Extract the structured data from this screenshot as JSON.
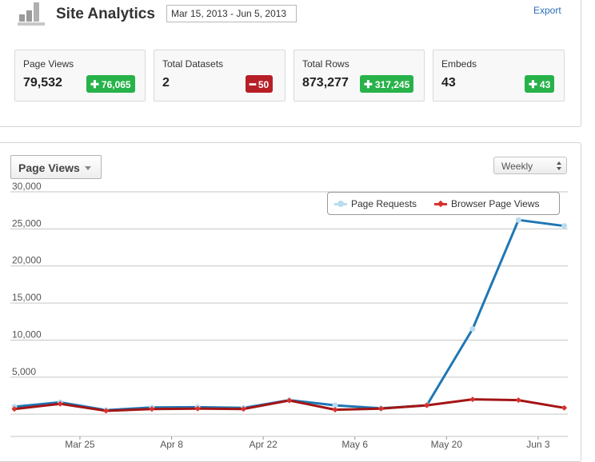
{
  "header": {
    "title": "Site Analytics",
    "date_range": "Mar 15, 2013 - Jun 5, 2013",
    "export_label": "Export"
  },
  "stats": [
    {
      "label": "Page Views",
      "value": "79,532",
      "delta": "76,065",
      "delta_direction": "up"
    },
    {
      "label": "Total Datasets",
      "value": "2",
      "delta": "50",
      "delta_direction": "down"
    },
    {
      "label": "Total Rows",
      "value": "873,277",
      "delta": "317,245",
      "delta_direction": "up"
    },
    {
      "label": "Embeds",
      "value": "43",
      "delta": "43",
      "delta_direction": "up"
    }
  ],
  "icons": {
    "app": "bar-chart-icon",
    "delta_up": "plus-icon",
    "delta_down": "minus-icon",
    "dropdown": "caret-down-icon",
    "select": "up-down-arrows-icon"
  },
  "chart_controls": {
    "metric": "Page Views",
    "interval": "Weekly"
  },
  "colors": {
    "up": "#27b24a",
    "down": "#b71f27",
    "page_requests": "#1f77b4",
    "browser_page_views": "#a31515",
    "page_requests_marker": "#b9dcef",
    "browser_marker": "#d9312d",
    "link": "#2a6ebb"
  },
  "chart_data": {
    "type": "line",
    "x": [
      "Mar 15",
      "Mar 22",
      "Mar 29",
      "Apr 5",
      "Apr 12",
      "Apr 19",
      "Apr 26",
      "May 3",
      "May 10",
      "May 17",
      "May 24",
      "May 31",
      "Jun 5"
    ],
    "x_tick_labels": [
      "Mar 25",
      "Apr 8",
      "Apr 22",
      "May 6",
      "May 20",
      "Jun 3"
    ],
    "ylim": [
      -3000,
      30000
    ],
    "y_ticks": [
      0,
      5000,
      10000,
      15000,
      20000,
      25000,
      30000
    ],
    "y_tick_labels": [
      "",
      "5,000",
      "10,000",
      "15,000",
      "20,000",
      "25,000",
      "30,000"
    ],
    "grid": true,
    "legend_position": "top-right",
    "series": [
      {
        "name": "Page Requests",
        "values": [
          1000,
          1600,
          550,
          900,
          950,
          850,
          1900,
          1200,
          800,
          1200,
          11500,
          26200,
          25400
        ]
      },
      {
        "name": "Browser Page Views",
        "values": [
          700,
          1400,
          450,
          700,
          750,
          700,
          1850,
          600,
          750,
          1200,
          2000,
          1900,
          850
        ]
      }
    ]
  }
}
